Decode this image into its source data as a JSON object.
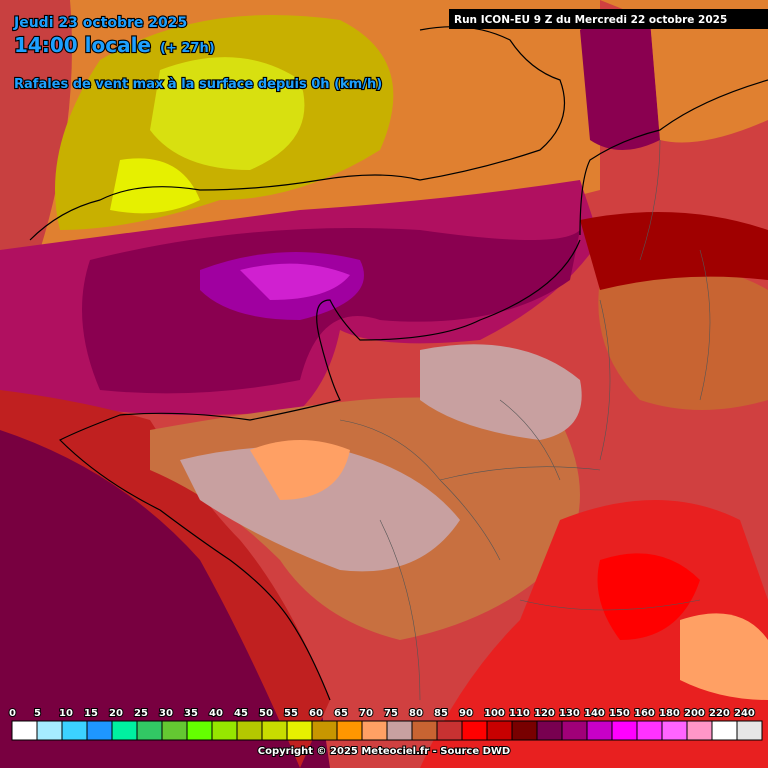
{
  "header": {
    "date": "Jeudi 23 octobre 2025",
    "time": "14:00 locale",
    "offset": "(+ 27h)",
    "subtitle": "Rafales de vent max à la surface depuis 0h (km/h)",
    "run": "Run ICON-EU 9 Z du Mercredi 22 octobre 2025"
  },
  "legend": {
    "steps": [
      {
        "value": 0,
        "color": "#ffffff"
      },
      {
        "value": 5,
        "color": "#a6ecff"
      },
      {
        "value": 10,
        "color": "#3cd2ff"
      },
      {
        "value": 15,
        "color": "#1e96ff"
      },
      {
        "value": 20,
        "color": "#00f0a0"
      },
      {
        "value": 25,
        "color": "#32c864"
      },
      {
        "value": 30,
        "color": "#64c832"
      },
      {
        "value": 35,
        "color": "#64ff00"
      },
      {
        "value": 40,
        "color": "#96e600"
      },
      {
        "value": 45,
        "color": "#b4c800"
      },
      {
        "value": 50,
        "color": "#c8dc00"
      },
      {
        "value": 55,
        "color": "#e6f000"
      },
      {
        "value": 60,
        "color": "#c89600"
      },
      {
        "value": 65,
        "color": "#ff9600"
      },
      {
        "value": 70,
        "color": "#ffa064"
      },
      {
        "value": 75,
        "color": "#c8a0a0"
      },
      {
        "value": 80,
        "color": "#c86432"
      },
      {
        "value": 85,
        "color": "#c83232"
      },
      {
        "value": 90,
        "color": "#ff0000"
      },
      {
        "value": 100,
        "color": "#c80000"
      },
      {
        "value": 110,
        "color": "#780000"
      },
      {
        "value": 120,
        "color": "#780050"
      },
      {
        "value": 130,
        "color": "#a00078"
      },
      {
        "value": 140,
        "color": "#c800c8"
      },
      {
        "value": 150,
        "color": "#ff00ff"
      },
      {
        "value": 160,
        "color": "#ff32ff"
      },
      {
        "value": 180,
        "color": "#ff64ff"
      },
      {
        "value": 200,
        "color": "#ff96c8"
      },
      {
        "value": 220,
        "color": "#ffffff"
      },
      {
        "value": 240,
        "color": "#e6e6e6"
      }
    ]
  },
  "footer": "Copyright © 2025 Meteociel.fr - Source DWD"
}
